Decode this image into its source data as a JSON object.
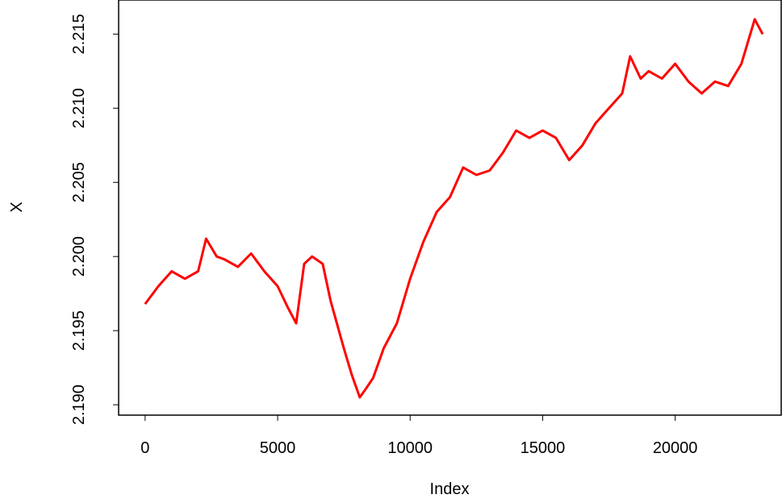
{
  "chart_data": {
    "type": "line",
    "title": "",
    "xlabel": "Index",
    "ylabel": "X",
    "xlim": [
      -1000,
      24000
    ],
    "ylim": [
      2.1893,
      2.2173
    ],
    "x_ticks": [
      {
        "value": 0,
        "label": "0"
      },
      {
        "value": 5000,
        "label": "5000"
      },
      {
        "value": 10000,
        "label": "10000"
      },
      {
        "value": 15000,
        "label": "15000"
      },
      {
        "value": 20000,
        "label": "20000"
      }
    ],
    "y_ticks": [
      {
        "value": 2.19,
        "label": "2.190"
      },
      {
        "value": 2.195,
        "label": "2.195"
      },
      {
        "value": 2.2,
        "label": "2.200"
      },
      {
        "value": 2.205,
        "label": "2.205"
      },
      {
        "value": 2.21,
        "label": "2.210"
      },
      {
        "value": 2.215,
        "label": "2.215"
      }
    ],
    "grid": false,
    "series": [
      {
        "color": "#000000",
        "x": [
          0,
          500,
          1000,
          1500,
          2000,
          2300,
          2700,
          3000,
          3500,
          4000,
          4500,
          5000,
          5400,
          5700,
          6000,
          6300,
          6700,
          7000,
          7500,
          7800,
          8100,
          8300,
          8600,
          9000,
          9500,
          10000,
          10500,
          11000,
          11500,
          12000,
          12500,
          13000,
          13500,
          14000,
          14500,
          15000,
          15500,
          16000,
          16500,
          17000,
          17500,
          18000,
          18300,
          18700,
          19000,
          19500,
          20000,
          20500,
          21000,
          21500,
          22000,
          22500,
          23000,
          23300
        ],
        "values": [
          2.1968,
          2.198,
          2.199,
          2.1985,
          2.199,
          2.2012,
          2.2,
          2.1998,
          2.1993,
          2.2002,
          2.199,
          2.198,
          2.1965,
          2.1955,
          2.1995,
          2.2,
          2.1995,
          2.197,
          2.1938,
          2.192,
          2.1905,
          2.191,
          2.1918,
          2.1938,
          2.1955,
          2.1985,
          2.201,
          2.203,
          2.204,
          2.206,
          2.2055,
          2.2058,
          2.207,
          2.2085,
          2.208,
          2.2085,
          2.208,
          2.2065,
          2.2075,
          2.209,
          2.21,
          2.211,
          2.2135,
          2.212,
          2.2125,
          2.212,
          2.213,
          2.2118,
          2.211,
          2.2118,
          2.2115,
          2.213,
          2.216,
          2.215
        ]
      },
      {
        "color": "#ff0000",
        "x": [
          0,
          500,
          1000,
          1500,
          2000,
          2300,
          2700,
          3000,
          3500,
          4000,
          4500,
          5000,
          5400,
          5700,
          6000,
          6300,
          6700,
          7000,
          7500,
          7800,
          8100,
          8300,
          8600,
          9000,
          9500,
          10000,
          10500,
          11000,
          11500,
          12000,
          12500,
          13000,
          13500,
          14000,
          14500,
          15000,
          15500,
          16000,
          16500,
          17000,
          17500,
          18000,
          18300,
          18700,
          19000,
          19500,
          20000,
          20500,
          21000,
          21500,
          22000,
          22500,
          23000,
          23300
        ],
        "values": [
          2.1968,
          2.198,
          2.199,
          2.1985,
          2.199,
          2.2012,
          2.2,
          2.1998,
          2.1993,
          2.2002,
          2.199,
          2.198,
          2.1965,
          2.1955,
          2.1995,
          2.2,
          2.1995,
          2.197,
          2.1938,
          2.192,
          2.1905,
          2.191,
          2.1918,
          2.1938,
          2.1955,
          2.1985,
          2.201,
          2.203,
          2.204,
          2.206,
          2.2055,
          2.2058,
          2.207,
          2.2085,
          2.208,
          2.2085,
          2.208,
          2.2065,
          2.2075,
          2.209,
          2.21,
          2.211,
          2.2135,
          2.212,
          2.2125,
          2.212,
          2.213,
          2.2118,
          2.211,
          2.2118,
          2.2115,
          2.213,
          2.216,
          2.215
        ]
      }
    ]
  }
}
